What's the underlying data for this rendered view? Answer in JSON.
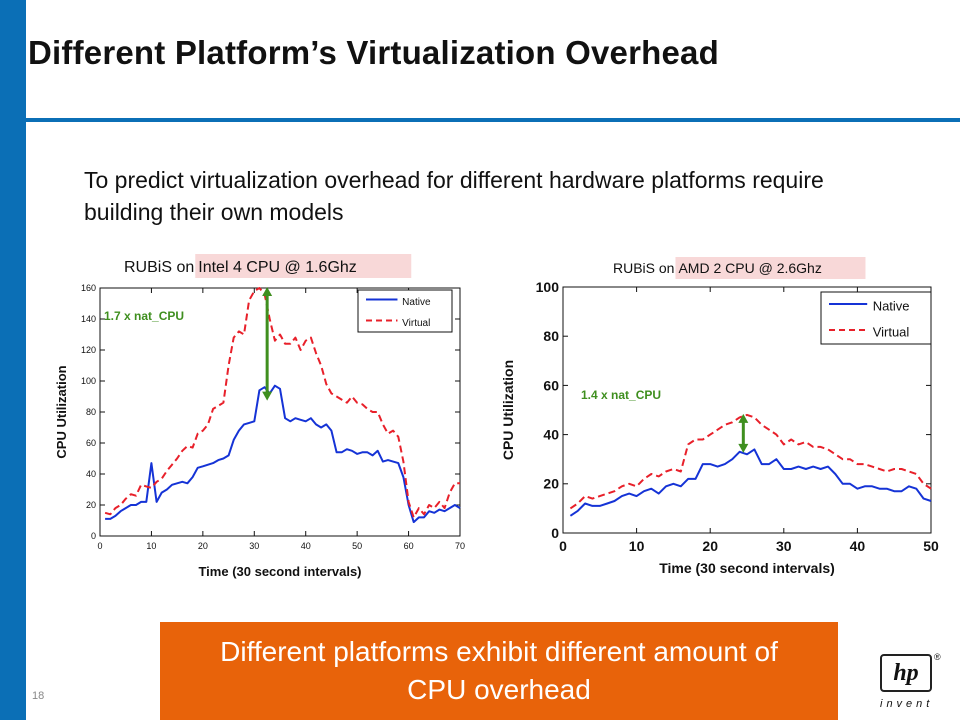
{
  "slide": {
    "title": "Different Platform’s Virtualization Overhead",
    "subtitle": "To predict virtualization overhead for different hardware platforms require building  their own models",
    "callout": "Different platforms exhibit different amount of CPU overhead",
    "slide_number": "18",
    "logo": {
      "mark": "hp",
      "registered": "®",
      "tagline": "invent"
    },
    "colors": {
      "accent_blue": "#0b6fb6",
      "callout_orange": "#e8630a",
      "native": "#1533d6",
      "virtual": "#e8202a",
      "arrow": "#3f8f1f",
      "title_highlight": "#f8d8d8"
    }
  },
  "chart_data": [
    {
      "type": "line",
      "title_prefix": "RUBiS on",
      "title_highlight": "Intel 4 CPU @ 1.6Ghz",
      "xlabel": "Time (30 second intervals)",
      "ylabel": "CPU Utilization",
      "xlim": [
        0,
        70
      ],
      "ylim": [
        0,
        160
      ],
      "xticks": [
        0,
        10,
        20,
        30,
        40,
        50,
        60,
        70
      ],
      "yticks": [
        0,
        20,
        40,
        60,
        80,
        100,
        120,
        140,
        160
      ],
      "legend_position": "top-right",
      "grid": false,
      "annotation": {
        "text": "1.7 x nat_CPU",
        "x": 32.5,
        "y_from": 160,
        "y_to": 88
      },
      "series": [
        {
          "name": "Native",
          "style": "solid",
          "x": [
            1,
            2,
            3,
            4,
            5,
            6,
            7,
            8,
            9,
            10,
            11,
            12,
            13,
            14,
            15,
            16,
            17,
            18,
            19,
            20,
            21,
            22,
            23,
            24,
            25,
            26,
            27,
            28,
            29,
            30,
            31,
            32,
            33,
            34,
            35,
            36,
            37,
            38,
            39,
            40,
            41,
            42,
            43,
            44,
            45,
            46,
            47,
            48,
            49,
            50,
            51,
            52,
            53,
            54,
            55,
            56,
            57,
            58,
            59,
            60,
            61,
            62,
            63,
            64,
            65,
            66,
            67,
            68,
            69,
            70
          ],
          "y": [
            11,
            11,
            13,
            16,
            18,
            20,
            20,
            22,
            22,
            47,
            22,
            28,
            30,
            33,
            34,
            35,
            34,
            38,
            44,
            45,
            46,
            47,
            49,
            50,
            52,
            62,
            68,
            72,
            73,
            74,
            94,
            96,
            92,
            97,
            95,
            76,
            74,
            76,
            75,
            74,
            76,
            72,
            70,
            72,
            68,
            54,
            54,
            56,
            55,
            53,
            54,
            54,
            52,
            55,
            48,
            49,
            48,
            47,
            38,
            20,
            9,
            12,
            12,
            16,
            15,
            17,
            16,
            18,
            20,
            18
          ]
        },
        {
          "name": "Virtual",
          "style": "dashed",
          "x": [
            1,
            2,
            3,
            4,
            5,
            6,
            7,
            8,
            9,
            10,
            11,
            12,
            13,
            14,
            15,
            16,
            17,
            18,
            19,
            20,
            21,
            22,
            23,
            24,
            25,
            26,
            27,
            28,
            29,
            30,
            31,
            32,
            33,
            34,
            35,
            36,
            37,
            38,
            39,
            40,
            41,
            42,
            43,
            44,
            45,
            46,
            47,
            48,
            49,
            50,
            51,
            52,
            53,
            54,
            55,
            56,
            57,
            58,
            59,
            60,
            61,
            62,
            63,
            64,
            65,
            66,
            67,
            68,
            69,
            70
          ],
          "y": [
            15,
            14,
            18,
            20,
            24,
            27,
            26,
            33,
            32,
            31,
            35,
            37,
            42,
            46,
            50,
            55,
            58,
            57,
            66,
            68,
            72,
            82,
            84,
            86,
            110,
            128,
            132,
            130,
            152,
            158,
            160,
            156,
            140,
            126,
            130,
            124,
            124,
            128,
            120,
            126,
            128,
            118,
            110,
            98,
            92,
            90,
            88,
            86,
            90,
            86,
            85,
            82,
            80,
            80,
            72,
            66,
            68,
            64,
            48,
            22,
            12,
            18,
            14,
            20,
            18,
            22,
            18,
            28,
            34,
            34
          ]
        }
      ]
    },
    {
      "type": "line",
      "title_prefix": "RUBiS on",
      "title_highlight": "AMD 2 CPU @ 2.6Ghz",
      "xlabel": "Time (30 second intervals)",
      "ylabel": "CPU Utilization",
      "xlim": [
        0,
        50
      ],
      "ylim": [
        0,
        100
      ],
      "xticks": [
        0,
        10,
        20,
        30,
        40,
        50
      ],
      "yticks": [
        0,
        20,
        40,
        60,
        80,
        100
      ],
      "legend_position": "top-right",
      "grid": false,
      "annotation": {
        "text": "1.4 x nat_CPU",
        "x": 24.5,
        "y_from": 48,
        "y_to": 33
      },
      "series": [
        {
          "name": "Native",
          "style": "solid",
          "x": [
            1,
            2,
            3,
            4,
            5,
            6,
            7,
            8,
            9,
            10,
            11,
            12,
            13,
            14,
            15,
            16,
            17,
            18,
            19,
            20,
            21,
            22,
            23,
            24,
            25,
            26,
            27,
            28,
            29,
            30,
            31,
            32,
            33,
            34,
            35,
            36,
            37,
            38,
            39,
            40,
            41,
            42,
            43,
            44,
            45,
            46,
            47,
            48,
            49,
            50
          ],
          "y": [
            7,
            9,
            12,
            11,
            11,
            12,
            13,
            15,
            16,
            15,
            17,
            18,
            16,
            19,
            20,
            19,
            22,
            22,
            28,
            28,
            27,
            28,
            30,
            33,
            32,
            34,
            28,
            28,
            30,
            26,
            26,
            27,
            26,
            27,
            26,
            27,
            24,
            20,
            20,
            18,
            19,
            19,
            18,
            18,
            17,
            17,
            19,
            18,
            14,
            13
          ]
        },
        {
          "name": "Virtual",
          "style": "dashed",
          "x": [
            1,
            2,
            3,
            4,
            5,
            6,
            7,
            8,
            9,
            10,
            11,
            12,
            13,
            14,
            15,
            16,
            17,
            18,
            19,
            20,
            21,
            22,
            23,
            24,
            25,
            26,
            27,
            28,
            29,
            30,
            31,
            32,
            33,
            34,
            35,
            36,
            37,
            38,
            39,
            40,
            41,
            42,
            43,
            44,
            45,
            46,
            47,
            48,
            49,
            50
          ],
          "y": [
            10,
            12,
            15,
            14,
            15,
            16,
            17,
            19,
            20,
            19,
            22,
            24,
            23,
            25,
            26,
            25,
            36,
            38,
            38,
            40,
            42,
            44,
            45,
            47,
            48,
            47,
            44,
            42,
            40,
            36,
            38,
            36,
            37,
            35,
            35,
            34,
            32,
            30,
            30,
            28,
            28,
            27,
            26,
            25,
            26,
            26,
            25,
            24,
            20,
            18
          ]
        }
      ]
    }
  ]
}
